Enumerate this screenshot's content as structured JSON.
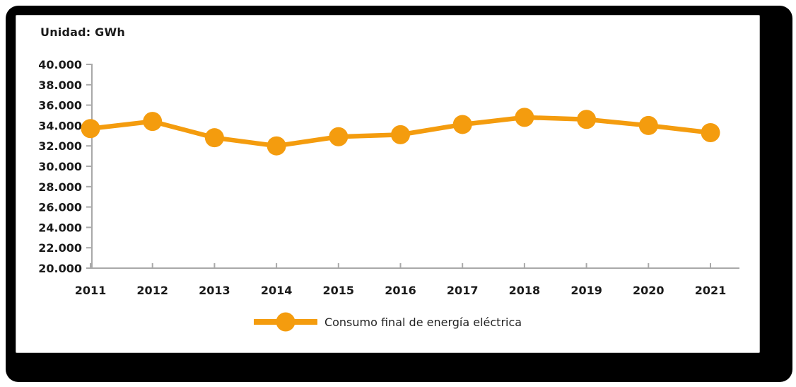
{
  "card": {
    "unit_label": "Unidad: GWh"
  },
  "legend": {
    "label": "Consumo final de energía eléctrica"
  },
  "colors": {
    "series": "#F49C0E",
    "axis": "#A9A9A9",
    "text": "#1A1A1A",
    "frame": "#000000",
    "card_border": "#B9B9B9"
  },
  "chart_data": {
    "type": "line",
    "title": "Unidad: GWh",
    "x": [
      "2011",
      "2012",
      "2013",
      "2014",
      "2015",
      "2016",
      "2017",
      "2018",
      "2019",
      "2020",
      "2021"
    ],
    "series": [
      {
        "name": "Consumo final de energía eléctrica",
        "values": [
          33700,
          34400,
          32800,
          32000,
          32900,
          33100,
          34100,
          34800,
          34600,
          34000,
          33300
        ]
      }
    ],
    "ylabel": "GWh",
    "ylim": [
      20000,
      40000
    ],
    "ytick_step": 2000,
    "ytick_labels": [
      "40.000",
      "38.000",
      "36.000",
      "34.000",
      "32.000",
      "30.000",
      "28.000",
      "26.000",
      "24.000",
      "22.000",
      "20.000"
    ],
    "grid": false,
    "legend_position": "bottom-center",
    "marker": "circle"
  }
}
